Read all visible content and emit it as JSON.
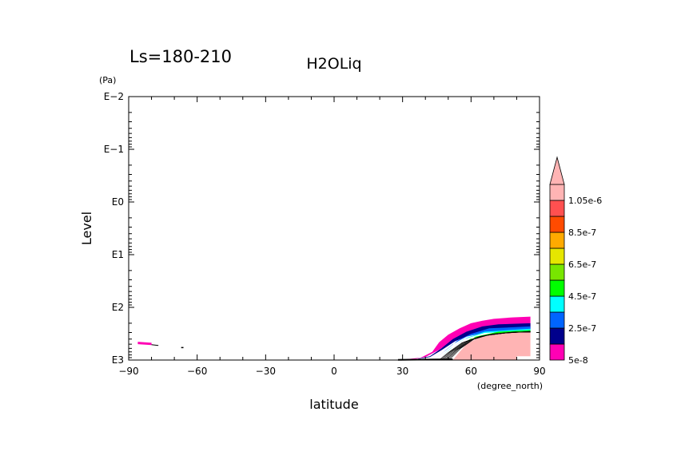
{
  "chart_data": {
    "type": "contour",
    "title": "H2OLiq",
    "subtitle": "Ls=180-210",
    "xlabel": "latitude",
    "xunit": "(degree_north)",
    "ylabel": "Level",
    "yunit": "(Pa)",
    "xlim": [
      -90,
      90
    ],
    "ylim": [
      1000,
      0.01
    ],
    "yscale": "log",
    "x_ticks": [
      -90,
      -60,
      -30,
      0,
      30,
      60,
      90
    ],
    "x_tick_labels": [
      "−90",
      "−60",
      "−30",
      "0",
      "30",
      "60",
      "90"
    ],
    "y_ticks": [
      0.01,
      0.1,
      1,
      10,
      100,
      1000
    ],
    "y_tick_labels": [
      "E−2",
      "E−1",
      "E0",
      "E1",
      "E2",
      "E3"
    ],
    "grid": false,
    "legend": {
      "placement": "right",
      "extend": "max",
      "levels": [
        5e-08,
        1.5e-07,
        2.5e-07,
        3.5e-07,
        4.5e-07,
        5.5e-07,
        6.5e-07,
        7.5e-07,
        8.5e-07,
        9.5e-07,
        1.05e-06
      ],
      "level_labels": [
        "5e-8",
        "2.5e-7",
        "4.5e-7",
        "6.5e-7",
        "8.5e-7",
        "1.05e-6"
      ],
      "colors": [
        "#ff00b4",
        "#00008c",
        "#0064ff",
        "#00ffff",
        "#00ff00",
        "#78e600",
        "#e6e600",
        "#ffaa00",
        "#ff4b00",
        "#ff5050",
        "#ffb4b4"
      ]
    },
    "fields": [
      {
        "level_band": "5e-8 to 1.5e-7",
        "color": "#ff00b4",
        "outline": [
          [
            28,
            1000
          ],
          [
            38,
            900
          ],
          [
            43,
            700
          ],
          [
            46,
            460
          ],
          [
            50,
            330
          ],
          [
            55,
            250
          ],
          [
            60,
            200
          ],
          [
            65,
            180
          ],
          [
            70,
            165
          ],
          [
            78,
            155
          ],
          [
            86,
            150
          ],
          [
            86,
            250
          ],
          [
            70,
            270
          ],
          [
            60,
            310
          ],
          [
            52,
            420
          ],
          [
            46,
            640
          ],
          [
            40,
            880
          ],
          [
            34,
            980
          ]
        ]
      },
      {
        "level_band": "1.5e-7 to 2.5e-7",
        "color": "#00008c",
        "outline": [
          [
            34,
            1000
          ],
          [
            42,
            850
          ],
          [
            47,
            600
          ],
          [
            52,
            400
          ],
          [
            58,
            290
          ],
          [
            65,
            230
          ],
          [
            72,
            210
          ],
          [
            86,
            200
          ],
          [
            86,
            260
          ],
          [
            70,
            280
          ],
          [
            60,
            330
          ],
          [
            53,
            440
          ],
          [
            47,
            650
          ],
          [
            42,
            880
          ]
        ]
      },
      {
        "level_band": "2.5e-7 to 3.5e-7",
        "color": "#0064ff",
        "outline": [
          [
            44,
            950
          ],
          [
            49,
            650
          ],
          [
            54,
            430
          ],
          [
            60,
            320
          ],
          [
            68,
            250
          ],
          [
            86,
            230
          ],
          [
            86,
            270
          ],
          [
            68,
            290
          ],
          [
            58,
            360
          ],
          [
            52,
            500
          ],
          [
            48,
            700
          ]
        ]
      },
      {
        "level_band": "3.5e-7 to 4.5e-7",
        "color": "#00ffff",
        "outline": [
          [
            47,
            850
          ],
          [
            52,
            560
          ],
          [
            58,
            380
          ],
          [
            66,
            290
          ],
          [
            86,
            255
          ],
          [
            86,
            280
          ],
          [
            66,
            305
          ],
          [
            57,
            400
          ],
          [
            51,
            600
          ]
        ]
      },
      {
        "level_band": "4.5e-7 to 5.5e-7",
        "color": "#00ff00",
        "outline": [
          [
            50,
            760
          ],
          [
            55,
            520
          ],
          [
            62,
            360
          ],
          [
            72,
            290
          ],
          [
            86,
            270
          ],
          [
            86,
            290
          ],
          [
            72,
            310
          ],
          [
            60,
            390
          ],
          [
            54,
            560
          ]
        ]
      },
      {
        "level_band": ">=1.05e-6",
        "color": "#ffb4b4",
        "outline": [
          [
            52,
            1000
          ],
          [
            55,
            700
          ],
          [
            58,
            500
          ],
          [
            63,
            380
          ],
          [
            70,
            320
          ],
          [
            78,
            300
          ],
          [
            86,
            295
          ],
          [
            86,
            850
          ],
          [
            80,
            850
          ],
          [
            80,
            1000
          ]
        ]
      },
      {
        "level_band": "5e-8 to 1.5e-7",
        "color": "#ff00b4",
        "outline": [
          [
            -86,
            450
          ],
          [
            -80,
            470
          ],
          [
            -80,
            520
          ],
          [
            -86,
            500
          ]
        ]
      }
    ]
  }
}
